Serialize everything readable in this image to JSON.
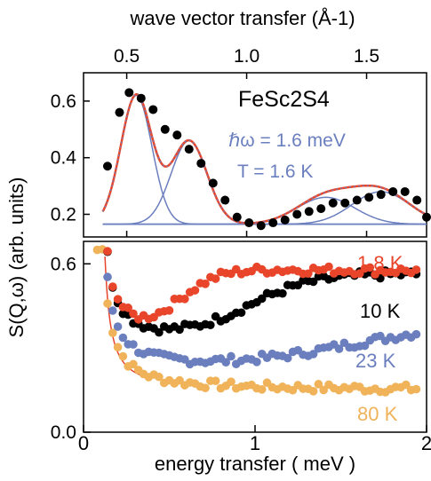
{
  "colors": {
    "axis": "#000000",
    "points": "#000000",
    "fit_total": "#e8452a",
    "fit_components": "#6b7fbf",
    "c_1p8K": "#e8452a",
    "c_10K": "#000000",
    "c_23K": "#6b7fbf",
    "c_80K": "#f0b35a"
  },
  "shared": {
    "ylabel": "S(Q,ω) (arb. units)"
  },
  "chart_data": [
    {
      "type": "scatter",
      "name_text": "FeSc2S4",
      "annotation_energy": "ℏω = 1.6 meV",
      "annotation_temp": "T = 1.6 K",
      "xlabel": "wave vector transfer (Å-1)",
      "xlim": [
        0.32,
        1.75
      ],
      "ylim": [
        0.12,
        0.7
      ],
      "xticks": [
        0.5,
        1.0,
        1.5
      ],
      "xtick_labels": [
        "0.5",
        "1.0",
        "1.5"
      ],
      "yticks": [
        0.2,
        0.4,
        0.6
      ],
      "ytick_labels": [
        "0.2",
        "0.4",
        "0.6"
      ],
      "baseline": 0.165,
      "components": [
        {
          "center": 0.54,
          "amp": 0.455,
          "sigma": 0.065
        },
        {
          "center": 0.76,
          "amp": 0.295,
          "sigma": 0.075
        },
        {
          "center": 1.33,
          "amp": 0.095,
          "sigma": 0.12
        },
        {
          "center": 1.56,
          "amp": 0.115,
          "sigma": 0.12
        }
      ],
      "points": [
        [
          0.42,
          0.37
        ],
        [
          0.47,
          0.56
        ],
        [
          0.51,
          0.63
        ],
        [
          0.56,
          0.61
        ],
        [
          0.61,
          0.57
        ],
        [
          0.66,
          0.5
        ],
        [
          0.71,
          0.48
        ],
        [
          0.76,
          0.43
        ],
        [
          0.81,
          0.38
        ],
        [
          0.86,
          0.31
        ],
        [
          0.91,
          0.25
        ],
        [
          0.96,
          0.19
        ],
        [
          1.01,
          0.17
        ],
        [
          1.06,
          0.16
        ],
        [
          1.11,
          0.17
        ],
        [
          1.16,
          0.18
        ],
        [
          1.21,
          0.2
        ],
        [
          1.26,
          0.21
        ],
        [
          1.31,
          0.22
        ],
        [
          1.36,
          0.24
        ],
        [
          1.41,
          0.24
        ],
        [
          1.46,
          0.25
        ],
        [
          1.51,
          0.26
        ],
        [
          1.56,
          0.27
        ],
        [
          1.61,
          0.28
        ],
        [
          1.66,
          0.28
        ],
        [
          1.71,
          0.25
        ],
        [
          1.75,
          0.19
        ]
      ]
    },
    {
      "type": "scatter",
      "xlabel": "energy transfer ( meV )",
      "xlim": [
        0,
        2
      ],
      "ylim": [
        0,
        0.68
      ],
      "xticks": [
        0,
        1,
        2
      ],
      "xtick_labels": [
        "0",
        "1",
        "2"
      ],
      "yticks": [
        0.0,
        0.6
      ],
      "ytick_labels": [
        "0.0",
        "0.6"
      ],
      "x_start": 0.08,
      "x_end": 1.95,
      "x_step": 0.03,
      "series": [
        {
          "name": "1.8 K",
          "color_key": "c_1p8K",
          "low": 0.31,
          "plateau": 0.57,
          "mid": 0.55,
          "width": 0.12
        },
        {
          "name": "10 K",
          "color_key": "c_10K",
          "low": 0.31,
          "plateau": 0.56,
          "mid": 0.95,
          "width": 0.2
        },
        {
          "name": "23 K",
          "color_key": "c_23K",
          "low": 0.22,
          "plateau": 0.39,
          "mid": 1.55,
          "width": 0.35
        },
        {
          "name": "80 K",
          "color_key": "c_80K",
          "low": 0.15,
          "plateau": 0.15,
          "mid": 1.0,
          "width": 1.0
        }
      ]
    }
  ]
}
